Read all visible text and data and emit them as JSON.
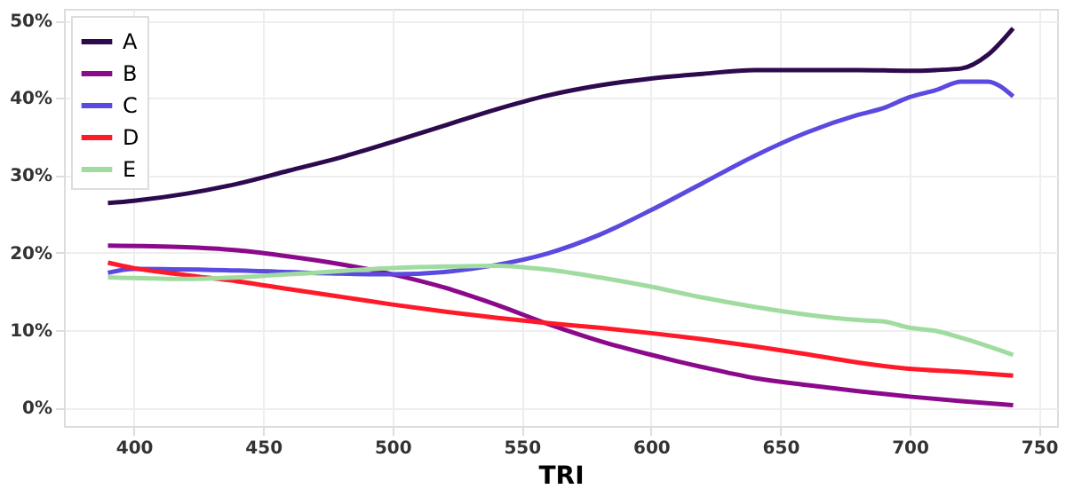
{
  "chart_data": {
    "type": "line",
    "xlabel": "TRI",
    "xlim": [
      373,
      757
    ],
    "xticks": [
      400,
      450,
      500,
      550,
      600,
      650,
      700,
      750
    ],
    "ylim": [
      -2.4,
      51.5
    ],
    "yticks": [
      {
        "value": 0,
        "label": "0%"
      },
      {
        "value": 10,
        "label": "10%"
      },
      {
        "value": 20,
        "label": "20%"
      },
      {
        "value": 30,
        "label": "30%"
      },
      {
        "value": 40,
        "label": "40%"
      },
      {
        "value": 50,
        "label": "50%"
      }
    ],
    "grid": true,
    "legend": "top left",
    "line_style": "solid",
    "marker": "none",
    "series": [
      {
        "name": "A",
        "color": "#2d0a4e",
        "x": [
          390,
          400,
          420,
          440,
          460,
          480,
          500,
          520,
          540,
          560,
          580,
          600,
          620,
          640,
          660,
          680,
          700,
          710,
          720,
          730,
          740
        ],
        "values": [
          26.4,
          26.7,
          27.6,
          28.9,
          30.6,
          32.3,
          34.3,
          36.4,
          38.5,
          40.3,
          41.6,
          42.5,
          43.1,
          43.6,
          43.6,
          43.6,
          43.5,
          43.6,
          43.8,
          45.5,
          49
        ]
      },
      {
        "name": "B",
        "color": "#8b0a8b",
        "x": [
          390,
          420,
          440,
          460,
          480,
          500,
          520,
          540,
          560,
          580,
          600,
          620,
          640,
          660,
          680,
          700,
          720,
          740
        ],
        "values": [
          20.9,
          20.7,
          20.3,
          19.5,
          18.5,
          17.2,
          15.5,
          13.3,
          10.8,
          8.6,
          6.8,
          5.2,
          3.8,
          2.9,
          2.1,
          1.4,
          0.8,
          0.3
        ]
      },
      {
        "name": "C",
        "color": "#5b4ae0",
        "x": [
          390,
          400,
          440,
          480,
          500,
          520,
          540,
          560,
          580,
          600,
          620,
          640,
          660,
          680,
          690,
          700,
          710,
          720,
          730,
          740
        ],
        "values": [
          17.4,
          17.9,
          17.7,
          17.3,
          17.2,
          17.5,
          18.4,
          19.9,
          22.3,
          25.5,
          29,
          32.5,
          35.5,
          37.8,
          38.7,
          40.1,
          41,
          42.1,
          42.1,
          40.2
        ]
      },
      {
        "name": "D",
        "color": "#ff1a2a",
        "x": [
          390,
          400,
          420,
          440,
          460,
          480,
          500,
          520,
          540,
          560,
          580,
          600,
          620,
          640,
          660,
          680,
          700,
          720,
          740
        ],
        "values": [
          18.7,
          18,
          17.1,
          16.3,
          15.3,
          14.3,
          13.3,
          12.4,
          11.6,
          10.9,
          10.3,
          9.6,
          8.8,
          7.9,
          6.9,
          5.8,
          5,
          4.6,
          4.1
        ]
      },
      {
        "name": "E",
        "color": "#a0dca0",
        "x": [
          390,
          420,
          460,
          500,
          520,
          540,
          560,
          580,
          600,
          620,
          640,
          660,
          680,
          690,
          700,
          710,
          720,
          740
        ],
        "values": [
          16.8,
          16.6,
          17.2,
          18,
          18.2,
          18.3,
          17.8,
          16.8,
          15.6,
          14.2,
          13,
          12,
          11.3,
          11.1,
          10.3,
          9.9,
          9,
          6.8
        ]
      }
    ]
  }
}
